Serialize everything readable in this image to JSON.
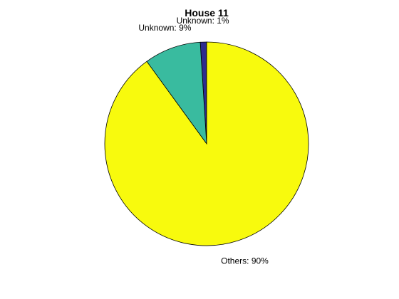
{
  "chart_data": {
    "type": "pie",
    "title": "House 11",
    "start": "top",
    "direction": "counterclockwise",
    "slices": [
      {
        "label": "Unknown: 1%",
        "value": 1,
        "color": "#2e2c8e"
      },
      {
        "label": "Unknown: 9%",
        "value": 9,
        "color": "#39bb9f"
      },
      {
        "label": "Others: 90%",
        "value": 90,
        "color": "#f8fa0d"
      }
    ]
  }
}
